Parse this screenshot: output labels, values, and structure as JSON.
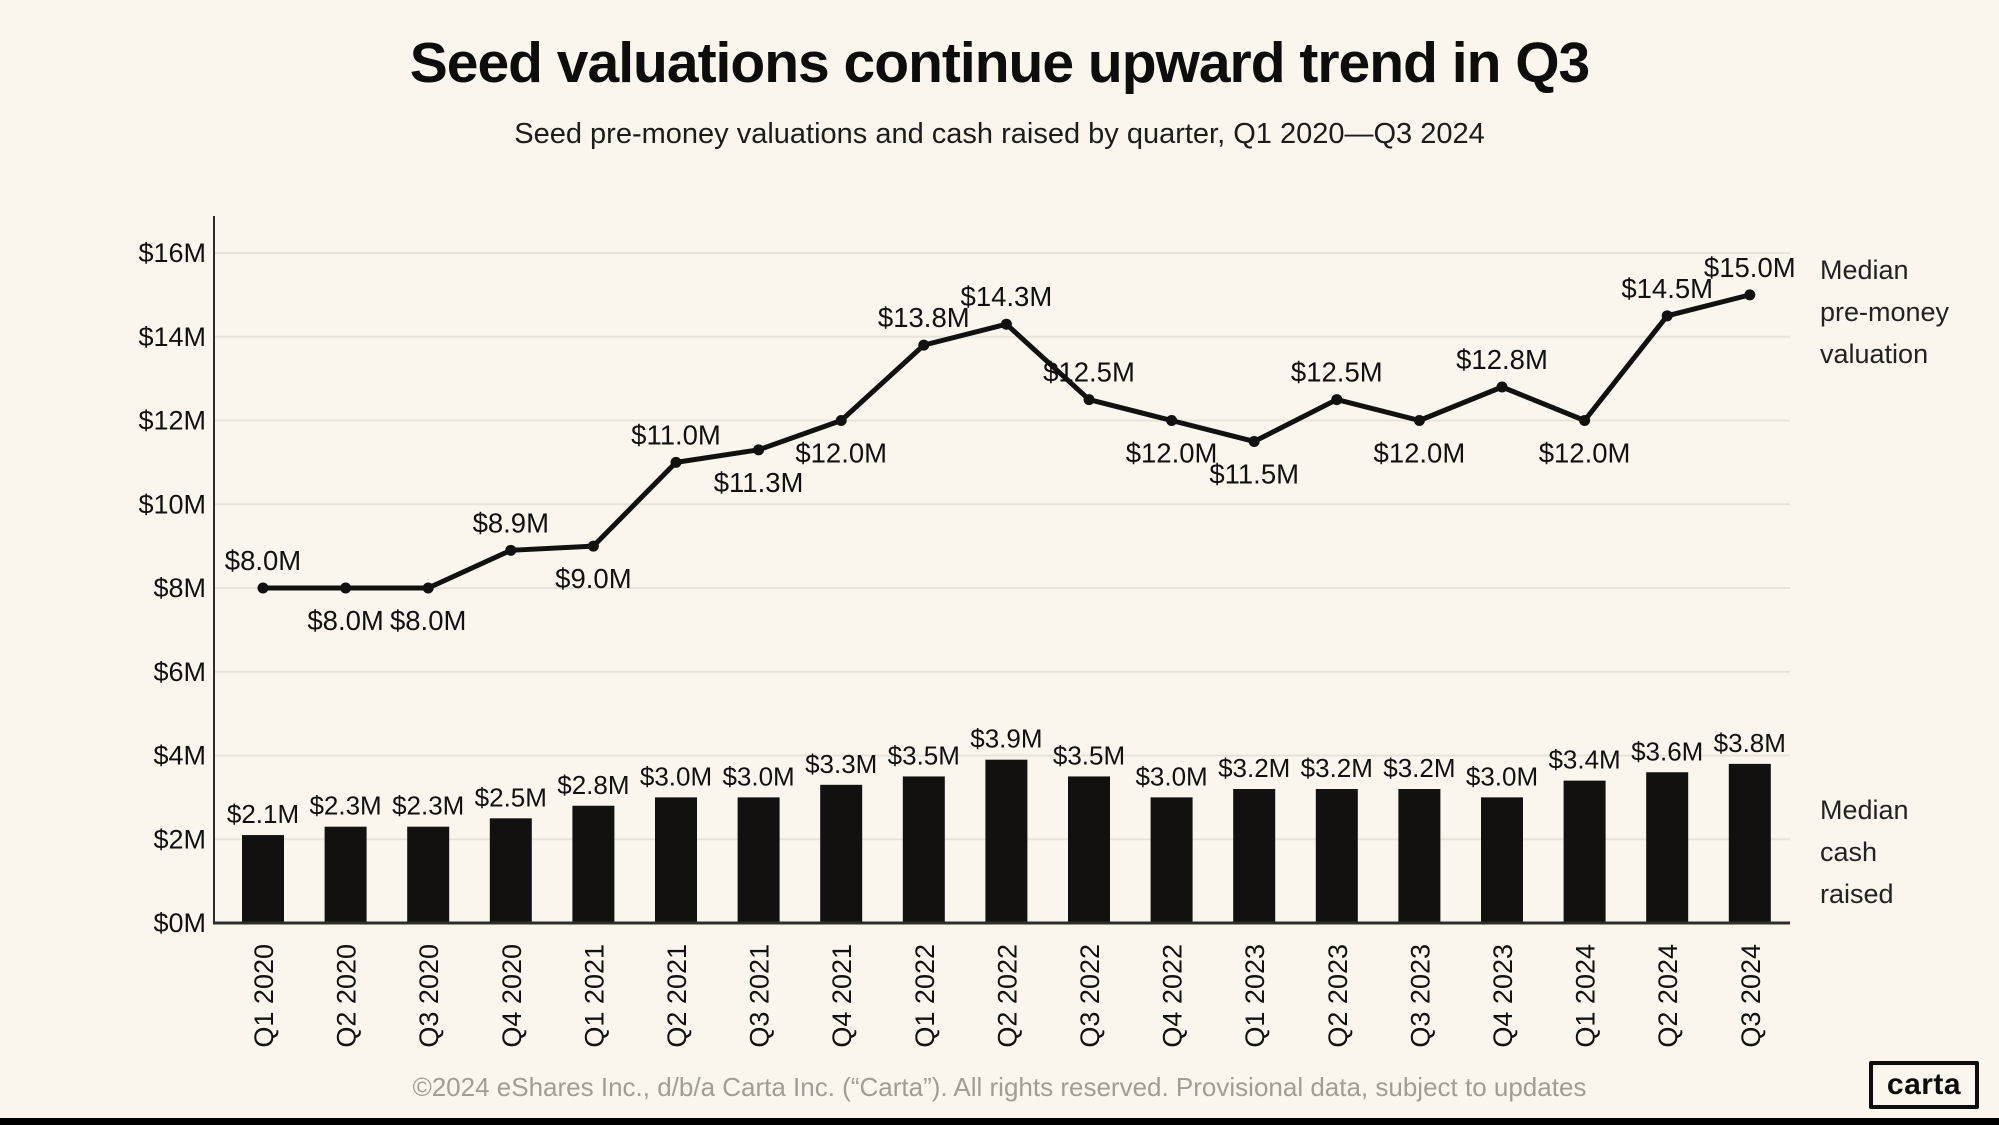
{
  "header": {
    "title": "Seed valuations continue upward trend in Q3",
    "subtitle": "Seed pre-money valuations and cash raised by quarter, Q1 2020—Q3 2024"
  },
  "legend": {
    "line_label_lines": [
      "Median",
      "pre-money",
      "valuation"
    ],
    "bar_label_lines": [
      "Median",
      "cash",
      "raised"
    ]
  },
  "footer": {
    "text": "©2024 eShares Inc., d/b/a Carta Inc. (“Carta”). All rights reserved. Provisional data, subject to updates",
    "logo_text": "carta"
  },
  "colors": {
    "background": "#faf6ee",
    "ink": "#121110",
    "gridline": "#e8e3d9",
    "axis": "#2f2d29",
    "footer_text": "#a19d95"
  },
  "chart_data": {
    "type": "combo-line-bar",
    "title": "Seed valuations continue upward trend in Q3",
    "xlabel": "",
    "ylabel": "",
    "ylim": [
      0,
      16
    ],
    "ytick_step": 2,
    "ytick_labels": [
      "$0M",
      "$2M",
      "$4M",
      "$6M",
      "$8M",
      "$10M",
      "$12M",
      "$14M",
      "$16M"
    ],
    "grid": true,
    "legend_position": "right",
    "categories": [
      "Q1 2020",
      "Q2 2020",
      "Q3 2020",
      "Q4 2020",
      "Q1 2021",
      "Q2 2021",
      "Q3 2021",
      "Q4 2021",
      "Q1 2022",
      "Q2 2022",
      "Q3 2022",
      "Q4 2022",
      "Q1 2023",
      "Q2 2023",
      "Q3 2023",
      "Q4 2023",
      "Q1 2024",
      "Q2 2024",
      "Q3 2024"
    ],
    "series": [
      {
        "name": "Median pre-money valuation",
        "type": "line",
        "values": [
          8.0,
          8.0,
          8.0,
          8.9,
          9.0,
          11.0,
          11.3,
          12.0,
          13.8,
          14.3,
          12.5,
          12.0,
          11.5,
          12.5,
          12.0,
          12.8,
          12.0,
          14.5,
          15.0
        ],
        "labels": [
          "$8.0M",
          "$8.0M",
          "$8.0M",
          "$8.9M",
          "$9.0M",
          "$11.0M",
          "$11.3M",
          "$12.0M",
          "$13.8M",
          "$14.3M",
          "$12.5M",
          "$12.0M",
          "$11.5M",
          "$12.5M",
          "$12.0M",
          "$12.8M",
          "$12.0M",
          "$14.5M",
          "$15.0M"
        ],
        "label_positions": [
          "above",
          "below",
          "below",
          "above",
          "below",
          "above",
          "below",
          "below",
          "above",
          "above",
          "above",
          "below",
          "below",
          "above",
          "below",
          "above",
          "below",
          "above",
          "above"
        ]
      },
      {
        "name": "Median cash raised",
        "type": "bar",
        "values": [
          2.1,
          2.3,
          2.3,
          2.5,
          2.8,
          3.0,
          3.0,
          3.3,
          3.5,
          3.9,
          3.5,
          3.0,
          3.2,
          3.2,
          3.2,
          3.0,
          3.4,
          3.6,
          3.8
        ],
        "labels": [
          "$2.1M",
          "$2.3M",
          "$2.3M",
          "$2.5M",
          "$2.8M",
          "$3.0M",
          "$3.0M",
          "$3.3M",
          "$3.5M",
          "$3.9M",
          "$3.5M",
          "$3.0M",
          "$3.2M",
          "$3.2M",
          "$3.2M",
          "$3.0M",
          "$3.4M",
          "$3.6M",
          "$3.8M"
        ]
      }
    ]
  }
}
